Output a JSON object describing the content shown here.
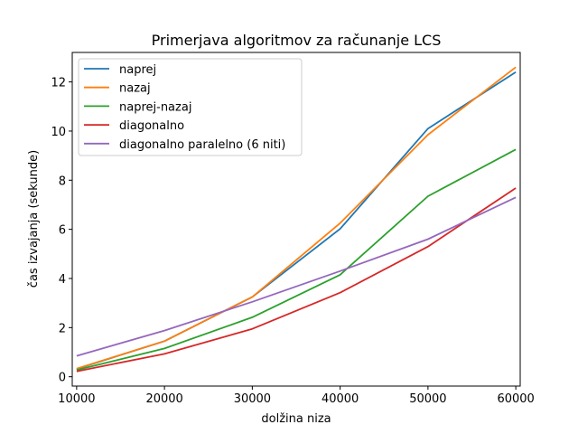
{
  "chart_data": {
    "type": "line",
    "title": "Primerjava algoritmov za računanje LCS",
    "xlabel": "dolžina niza",
    "ylabel": "čas izvajanja (sekunde)",
    "x": [
      10000,
      20000,
      30000,
      40000,
      50000,
      60000
    ],
    "x_ticks": [
      "10000",
      "20000",
      "30000",
      "40000",
      "50000",
      "60000"
    ],
    "y_ticks": [
      "0",
      "2",
      "4",
      "6",
      "8",
      "10",
      "12"
    ],
    "xlim": [
      9500,
      60500
    ],
    "ylim": [
      -0.38,
      13.2
    ],
    "grid": false,
    "legend_position": "upper left",
    "series": [
      {
        "name": "naprej",
        "color": "#1f77b4",
        "values": [
          0.32,
          1.45,
          3.25,
          6.02,
          10.1,
          12.4
        ]
      },
      {
        "name": "nazaj",
        "color": "#ff7f0e",
        "values": [
          0.33,
          1.45,
          3.25,
          6.25,
          9.85,
          12.6
        ]
      },
      {
        "name": "naprej-nazaj",
        "color": "#2ca02c",
        "values": [
          0.27,
          1.15,
          2.42,
          4.15,
          7.35,
          9.25
        ]
      },
      {
        "name": "diagonalno",
        "color": "#d62728",
        "values": [
          0.22,
          0.93,
          1.95,
          3.42,
          5.3,
          7.68
        ]
      },
      {
        "name": "diagonalno paralelno (6 niti)",
        "color": "#9467bd",
        "values": [
          0.85,
          1.88,
          3.05,
          4.3,
          5.6,
          7.3
        ]
      }
    ]
  }
}
